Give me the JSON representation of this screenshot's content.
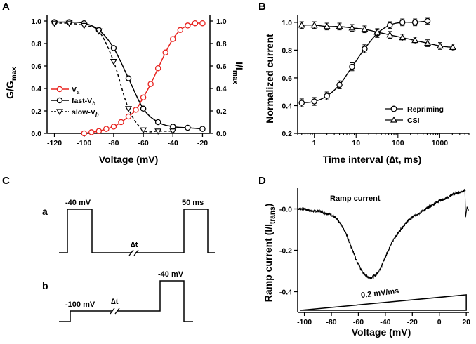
{
  "panels": {
    "a": "A",
    "b": "B",
    "c": "C",
    "d": "D"
  },
  "colors": {
    "va": "#e8231f",
    "black": "#000000"
  },
  "chart_data": [
    {
      "id": "A",
      "type": "line",
      "xlabel": "Voltage (mV)",
      "ylabel": "G/G",
      "ylabel_sub": "max",
      "ylabel_right": "I/I",
      "ylabel_right_sub": "max",
      "xlim": [
        -125,
        -15
      ],
      "ylim": [
        0,
        1.05
      ],
      "xticks": [
        "-120",
        "-100",
        "-80",
        "-60",
        "-40",
        "-20"
      ],
      "xtick_values": [
        -120,
        -100,
        -80,
        -60,
        -40,
        -20
      ],
      "yticks": [
        "0.0",
        "0.2",
        "0.4",
        "0.6",
        "0.8",
        "1.0"
      ],
      "ytick_values": [
        0,
        0.2,
        0.4,
        0.6,
        0.8,
        1.0
      ],
      "legend_position": "center-left",
      "series": [
        {
          "name": "Va",
          "legend_main": "V",
          "legend_sub": "a",
          "marker": "circle",
          "color": "#e8231f",
          "line": "solid",
          "x": [
            -100,
            -95,
            -90,
            -85,
            -80,
            -75,
            -70,
            -65,
            -60,
            -55,
            -50,
            -45,
            -40,
            -35,
            -30,
            -25,
            -20
          ],
          "y": [
            0.0,
            0.01,
            0.02,
            0.04,
            0.06,
            0.1,
            0.15,
            0.21,
            0.32,
            0.44,
            0.58,
            0.72,
            0.84,
            0.92,
            0.96,
            0.98,
            0.98
          ]
        },
        {
          "name": "fast-Vh",
          "legend_main": "fast-V",
          "legend_sub": "h",
          "marker": "circle",
          "color": "#000000",
          "line": "solid",
          "x": [
            -120,
            -110,
            -100,
            -90,
            -80,
            -70,
            -60,
            -50,
            -40,
            -30,
            -20
          ],
          "y": [
            0.99,
            0.99,
            0.98,
            0.92,
            0.76,
            0.49,
            0.22,
            0.1,
            0.06,
            0.05,
            0.04
          ]
        },
        {
          "name": "slow-Vh",
          "legend_main": "slow-V",
          "legend_sub": "h",
          "marker": "triangle-down",
          "color": "#000000",
          "line": "dashed",
          "x": [
            -120,
            -110,
            -100,
            -90,
            -80,
            -70,
            -60,
            -50,
            -40
          ],
          "y": [
            0.98,
            0.98,
            0.96,
            0.91,
            0.64,
            0.22,
            0.03,
            0.02,
            0.02
          ]
        }
      ]
    },
    {
      "id": "B",
      "type": "line",
      "xscale": "log",
      "xlabel": "Time interval (∆t, ms)",
      "ylabel": "Normalized current",
      "xlim": [
        0.4,
        5000
      ],
      "ylim": [
        0.2,
        1.05
      ],
      "xticks": [
        "1",
        "10",
        "100",
        "1000"
      ],
      "xtick_values": [
        1,
        10,
        100,
        1000
      ],
      "yticks": [
        "0.2",
        "0.4",
        "0.6",
        "0.8",
        "1.0"
      ],
      "ytick_values": [
        0.2,
        0.4,
        0.6,
        0.8,
        1.0
      ],
      "legend_position": "bottom-right",
      "series": [
        {
          "name": "Repriming",
          "marker": "circle",
          "x": [
            0.5,
            1,
            2,
            4,
            8,
            16,
            32,
            64,
            128,
            256,
            512
          ],
          "y": [
            0.42,
            0.43,
            0.47,
            0.55,
            0.68,
            0.81,
            0.92,
            0.98,
            1.0,
            1.0,
            1.01
          ]
        },
        {
          "name": "CSI",
          "marker": "triangle",
          "x": [
            0.5,
            1,
            2,
            4,
            8,
            16,
            32,
            64,
            128,
            256,
            512,
            1024,
            2048
          ],
          "y": [
            0.98,
            0.98,
            0.97,
            0.97,
            0.96,
            0.95,
            0.93,
            0.91,
            0.89,
            0.87,
            0.85,
            0.83,
            0.82
          ]
        }
      ]
    },
    {
      "id": "D",
      "type": "line",
      "xlabel": "Voltage (mV)",
      "ylabel": "Ramp current  (I/I",
      "ylabel_sub": "trans",
      "ylabel_close": ")",
      "xlim": [
        -105,
        22
      ],
      "ylim": [
        -0.5,
        0.1
      ],
      "xticks": [
        "-100",
        "-80",
        "-60",
        "-40",
        "-20",
        "0",
        "20"
      ],
      "xtick_values": [
        -100,
        -80,
        -60,
        -40,
        -20,
        0,
        20
      ],
      "yticks": [
        "-0.0",
        "-0.2",
        "-0.4"
      ],
      "ytick_values": [
        0,
        -0.2,
        -0.4
      ],
      "annotation_title": "Ramp current",
      "ramp_label": "0.2 mV/ms",
      "series": [
        {
          "name": "Ramp current",
          "x": [
            -105,
            -100,
            -95,
            -90,
            -85,
            -80,
            -75,
            -70,
            -65,
            -60,
            -55,
            -50,
            -45,
            -40,
            -35,
            -30,
            -25,
            -20,
            -15,
            -10,
            -5,
            0,
            5,
            10,
            15,
            19
          ],
          "y": [
            0.0,
            0.0,
            -0.01,
            -0.01,
            -0.02,
            -0.03,
            -0.06,
            -0.11,
            -0.19,
            -0.27,
            -0.32,
            -0.33,
            -0.3,
            -0.23,
            -0.16,
            -0.11,
            -0.07,
            -0.04,
            -0.02,
            0.0,
            0.02,
            0.04,
            0.05,
            0.07,
            0.08,
            0.09
          ]
        }
      ]
    }
  ],
  "protocol": {
    "row_a": "a",
    "row_b": "b",
    "a_pulse_label": "-40 mV",
    "a_duration_label": "50 ms",
    "b_hold_label": "-100 mV",
    "b_pulse_label": "-40 mV",
    "delta_t": "∆t"
  }
}
